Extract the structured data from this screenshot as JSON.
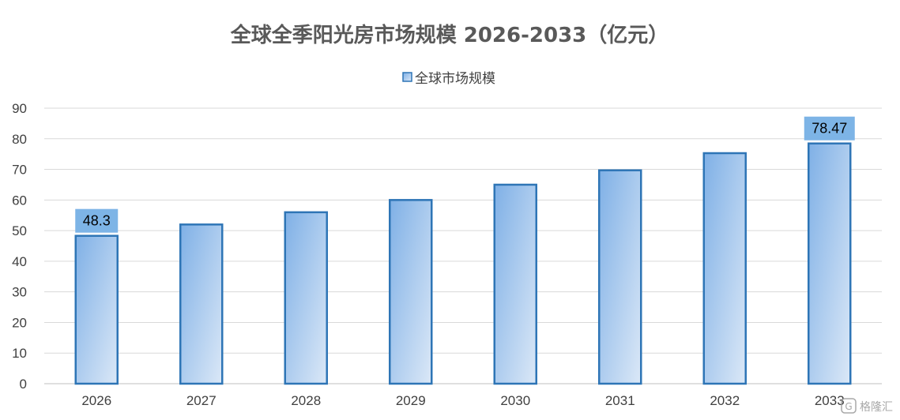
{
  "chart_data": {
    "type": "bar",
    "title": "全球全季阳光房市场规模 2026-2033（亿元）",
    "categories": [
      "2026",
      "2027",
      "2028",
      "2029",
      "2030",
      "2031",
      "2032",
      "2033"
    ],
    "series": [
      {
        "name": "全球市场规模",
        "values": [
          48.3,
          52.0,
          56.0,
          60.0,
          65.0,
          69.7,
          75.3,
          78.47
        ]
      }
    ],
    "data_labels": [
      {
        "category": "2026",
        "text": "48.3"
      },
      {
        "category": "2033",
        "text": "78.47"
      }
    ],
    "yticks": [
      "0",
      "10",
      "20",
      "30",
      "40",
      "50",
      "60",
      "70",
      "80",
      "90"
    ],
    "ylim": [
      0,
      90
    ],
    "grid": true,
    "legend_position": "top",
    "colors": {
      "bar_stroke": "#2e75b6",
      "bar_fill_dark": "#7fb0e6",
      "bar_fill_light": "#dbe8f7",
      "label_box": "#7db4e6",
      "grid": "#d9d9d9",
      "axis": "#bfbfbf",
      "title": "#595959"
    }
  },
  "watermark": {
    "icon": "gelonghui-logo-icon",
    "text": "格隆汇"
  }
}
